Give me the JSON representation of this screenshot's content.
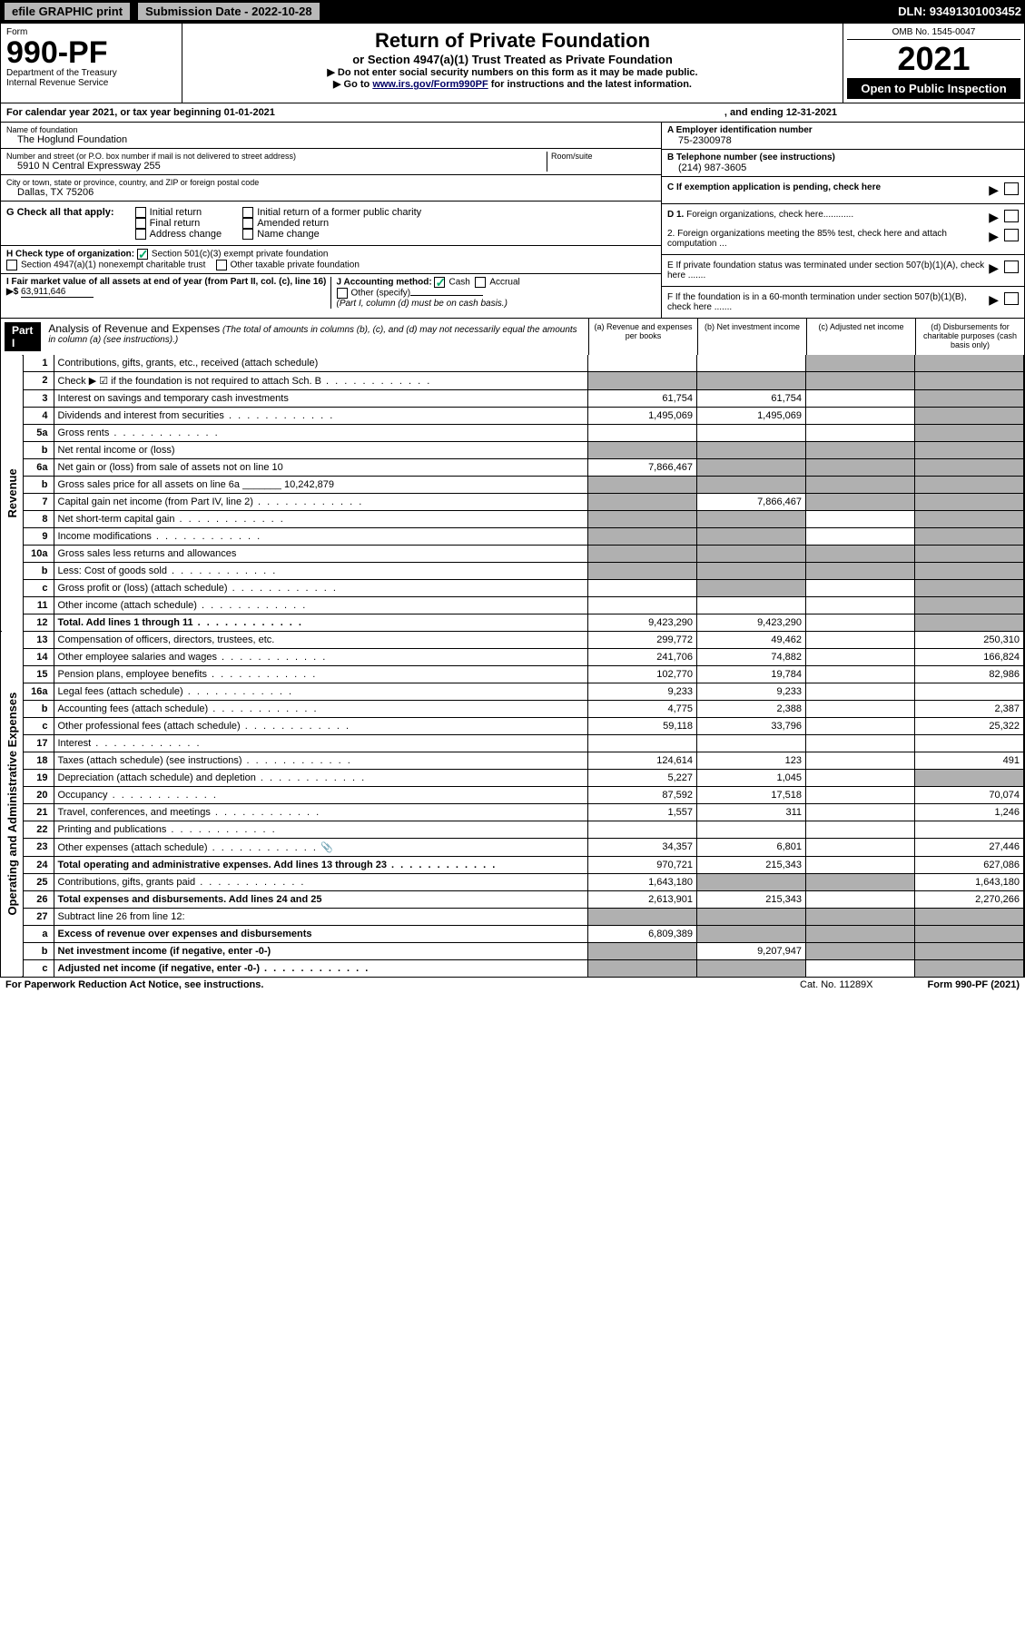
{
  "topbar": {
    "efile": "efile GRAPHIC print",
    "subdate_label": "Submission Date - 2022-10-28",
    "dln": "DLN: 93491301003452"
  },
  "header": {
    "form_label": "Form",
    "form_no": "990-PF",
    "dept": "Department of the Treasury",
    "irs": "Internal Revenue Service",
    "title": "Return of Private Foundation",
    "subtitle": "or Section 4947(a)(1) Trust Treated as Private Foundation",
    "note1": "▶ Do not enter social security numbers on this form as it may be made public.",
    "note2_pre": "▶ Go to ",
    "note2_link": "www.irs.gov/Form990PF",
    "note2_post": " for instructions and the latest information.",
    "omb": "OMB No. 1545-0047",
    "year": "2021",
    "open": "Open to Public Inspection"
  },
  "cal": {
    "text": "For calendar year 2021, or tax year beginning 01-01-2021",
    "end": ", and ending 12-31-2021"
  },
  "foundation": {
    "name_label": "Name of foundation",
    "name": "The Hoglund Foundation",
    "addr_label": "Number and street (or P.O. box number if mail is not delivered to street address)",
    "addr": "5910 N Central Expressway 255",
    "room_label": "Room/suite",
    "city_label": "City or town, state or province, country, and ZIP or foreign postal code",
    "city": "Dallas, TX  75206",
    "ein_label": "A Employer identification number",
    "ein": "75-2300978",
    "tel_label": "B Telephone number (see instructions)",
    "tel": "(214) 987-3605",
    "c_label": "C If exemption application is pending, check here"
  },
  "g": {
    "label": "G Check all that apply:",
    "initial": "Initial return",
    "final": "Final return",
    "addrchg": "Address change",
    "initial_pub": "Initial return of a former public charity",
    "amended": "Amended return",
    "namechg": "Name change"
  },
  "h": {
    "label": "H Check type of organization:",
    "s501": "Section 501(c)(3) exempt private foundation",
    "s4947": "Section 4947(a)(1) nonexempt charitable trust",
    "other_tax": "Other taxable private foundation"
  },
  "i": {
    "label": "I Fair market value of all assets at end of year (from Part II, col. (c), line 16) ▶$",
    "val": "63,911,646"
  },
  "j": {
    "label": "J Accounting method:",
    "cash": "Cash",
    "accrual": "Accrual",
    "other": "Other (specify)",
    "note": "(Part I, column (d) must be on cash basis.)"
  },
  "d_right": {
    "d1": "D 1. Foreign organizations, check here............",
    "d2": "2. Foreign organizations meeting the 85% test, check here and attach computation ...",
    "e": "E  If private foundation status was terminated under section 507(b)(1)(A), check here .......",
    "f": "F  If the foundation is in a 60-month termination under section 507(b)(1)(B), check here ......."
  },
  "part1": {
    "label": "Part I",
    "title": "Analysis of Revenue and Expenses",
    "note": "(The total of amounts in columns (b), (c), and (d) may not necessarily equal the amounts in column (a) (see instructions).)",
    "col_a": "(a)  Revenue and expenses per books",
    "col_b": "(b)  Net investment income",
    "col_c": "(c)  Adjusted net income",
    "col_d": "(d)  Disbursements for charitable purposes (cash basis only)"
  },
  "side": {
    "rev": "Revenue",
    "exp": "Operating and Administrative Expenses"
  },
  "rows": [
    {
      "n": "1",
      "d": "Contributions, gifts, grants, etc., received (attach schedule)",
      "a": "",
      "b": "",
      "c": "grey",
      "dd": "grey"
    },
    {
      "n": "2",
      "d": "Check ▶ ☑ if the foundation is not required to attach Sch. B",
      "a": "grey",
      "b": "grey",
      "c": "grey",
      "dd": "grey",
      "dots": true
    },
    {
      "n": "3",
      "d": "Interest on savings and temporary cash investments",
      "a": "61,754",
      "b": "61,754",
      "c": "",
      "dd": "grey"
    },
    {
      "n": "4",
      "d": "Dividends and interest from securities",
      "a": "1,495,069",
      "b": "1,495,069",
      "c": "",
      "dd": "grey",
      "dots": true
    },
    {
      "n": "5a",
      "d": "Gross rents",
      "a": "",
      "b": "",
      "c": "",
      "dd": "grey",
      "dots": true
    },
    {
      "n": "b",
      "d": "Net rental income or (loss)",
      "a": "grey",
      "b": "grey",
      "c": "grey",
      "dd": "grey"
    },
    {
      "n": "6a",
      "d": "Net gain or (loss) from sale of assets not on line 10",
      "a": "7,866,467",
      "b": "grey",
      "c": "grey",
      "dd": "grey"
    },
    {
      "n": "b",
      "d": "Gross sales price for all assets on line 6a _______ 10,242,879",
      "a": "grey",
      "b": "grey",
      "c": "grey",
      "dd": "grey"
    },
    {
      "n": "7",
      "d": "Capital gain net income (from Part IV, line 2)",
      "a": "grey",
      "b": "7,866,467",
      "c": "grey",
      "dd": "grey",
      "dots": true
    },
    {
      "n": "8",
      "d": "Net short-term capital gain",
      "a": "grey",
      "b": "grey",
      "c": "",
      "dd": "grey",
      "dots": true
    },
    {
      "n": "9",
      "d": "Income modifications",
      "a": "grey",
      "b": "grey",
      "c": "",
      "dd": "grey",
      "dots": true
    },
    {
      "n": "10a",
      "d": "Gross sales less returns and allowances",
      "a": "grey",
      "b": "grey",
      "c": "grey",
      "dd": "grey"
    },
    {
      "n": "b",
      "d": "Less: Cost of goods sold",
      "a": "grey",
      "b": "grey",
      "c": "grey",
      "dd": "grey",
      "dots": true
    },
    {
      "n": "c",
      "d": "Gross profit or (loss) (attach schedule)",
      "a": "",
      "b": "grey",
      "c": "",
      "dd": "grey",
      "dots": true
    },
    {
      "n": "11",
      "d": "Other income (attach schedule)",
      "a": "",
      "b": "",
      "c": "",
      "dd": "grey",
      "dots": true
    },
    {
      "n": "12",
      "d": "Total. Add lines 1 through 11",
      "a": "9,423,290",
      "b": "9,423,290",
      "c": "",
      "dd": "grey",
      "bold": true,
      "dots": true
    },
    {
      "n": "13",
      "d": "Compensation of officers, directors, trustees, etc.",
      "a": "299,772",
      "b": "49,462",
      "c": "",
      "dd": "250,310"
    },
    {
      "n": "14",
      "d": "Other employee salaries and wages",
      "a": "241,706",
      "b": "74,882",
      "c": "",
      "dd": "166,824",
      "dots": true
    },
    {
      "n": "15",
      "d": "Pension plans, employee benefits",
      "a": "102,770",
      "b": "19,784",
      "c": "",
      "dd": "82,986",
      "dots": true
    },
    {
      "n": "16a",
      "d": "Legal fees (attach schedule)",
      "a": "9,233",
      "b": "9,233",
      "c": "",
      "dd": "",
      "dots": true
    },
    {
      "n": "b",
      "d": "Accounting fees (attach schedule)",
      "a": "4,775",
      "b": "2,388",
      "c": "",
      "dd": "2,387",
      "dots": true
    },
    {
      "n": "c",
      "d": "Other professional fees (attach schedule)",
      "a": "59,118",
      "b": "33,796",
      "c": "",
      "dd": "25,322",
      "dots": true
    },
    {
      "n": "17",
      "d": "Interest",
      "a": "",
      "b": "",
      "c": "",
      "dd": "",
      "dots": true
    },
    {
      "n": "18",
      "d": "Taxes (attach schedule) (see instructions)",
      "a": "124,614",
      "b": "123",
      "c": "",
      "dd": "491",
      "dots": true
    },
    {
      "n": "19",
      "d": "Depreciation (attach schedule) and depletion",
      "a": "5,227",
      "b": "1,045",
      "c": "",
      "dd": "grey",
      "dots": true
    },
    {
      "n": "20",
      "d": "Occupancy",
      "a": "87,592",
      "b": "17,518",
      "c": "",
      "dd": "70,074",
      "dots": true
    },
    {
      "n": "21",
      "d": "Travel, conferences, and meetings",
      "a": "1,557",
      "b": "311",
      "c": "",
      "dd": "1,246",
      "dots": true
    },
    {
      "n": "22",
      "d": "Printing and publications",
      "a": "",
      "b": "",
      "c": "",
      "dd": "",
      "dots": true
    },
    {
      "n": "23",
      "d": "Other expenses (attach schedule)",
      "a": "34,357",
      "b": "6,801",
      "c": "",
      "dd": "27,446",
      "icon": true,
      "dots": true
    },
    {
      "n": "24",
      "d": "Total operating and administrative expenses. Add lines 13 through 23",
      "a": "970,721",
      "b": "215,343",
      "c": "",
      "dd": "627,086",
      "bold": true,
      "dots": true
    },
    {
      "n": "25",
      "d": "Contributions, gifts, grants paid",
      "a": "1,643,180",
      "b": "grey",
      "c": "grey",
      "dd": "1,643,180",
      "dots": true
    },
    {
      "n": "26",
      "d": "Total expenses and disbursements. Add lines 24 and 25",
      "a": "2,613,901",
      "b": "215,343",
      "c": "",
      "dd": "2,270,266",
      "bold": true
    },
    {
      "n": "27",
      "d": "Subtract line 26 from line 12:",
      "a": "grey",
      "b": "grey",
      "c": "grey",
      "dd": "grey"
    },
    {
      "n": "a",
      "d": "Excess of revenue over expenses and disbursements",
      "a": "6,809,389",
      "b": "grey",
      "c": "grey",
      "dd": "grey",
      "bold": true
    },
    {
      "n": "b",
      "d": "Net investment income (if negative, enter -0-)",
      "a": "grey",
      "b": "9,207,947",
      "c": "grey",
      "dd": "grey",
      "bold": true
    },
    {
      "n": "c",
      "d": "Adjusted net income (if negative, enter -0-)",
      "a": "grey",
      "b": "grey",
      "c": "",
      "dd": "grey",
      "bold": true,
      "dots": true
    }
  ],
  "footer": {
    "pra": "For Paperwork Reduction Act Notice, see instructions.",
    "cat": "Cat. No. 11289X",
    "form": "Form 990-PF (2021)"
  }
}
